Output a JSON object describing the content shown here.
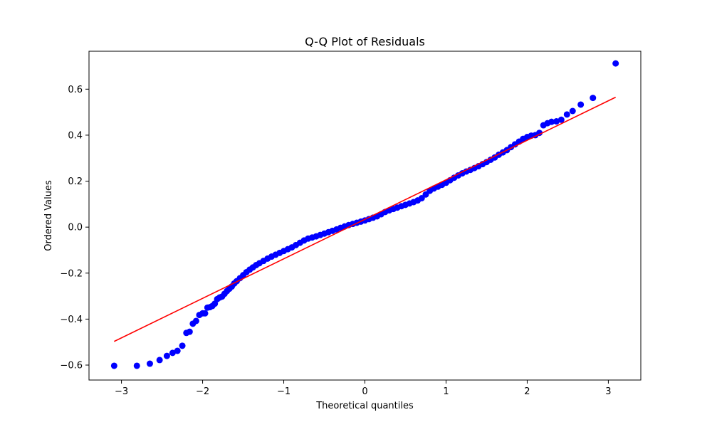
{
  "chart_data": {
    "type": "scatter",
    "title": "Q-Q Plot of Residuals",
    "xlabel": "Theoretical quantiles",
    "ylabel": "Ordered Values",
    "xlim": [
      -3.4,
      3.4
    ],
    "ylim": [
      -0.665,
      0.765
    ],
    "xticks": [
      -3,
      -2,
      -1,
      0,
      1,
      2,
      3
    ],
    "yticks": [
      -0.6,
      -0.4,
      -0.2,
      0.0,
      0.2,
      0.4,
      0.6
    ],
    "xtick_labels": [
      "−3",
      "−2",
      "−1",
      "0",
      "1",
      "2",
      "3"
    ],
    "ytick_labels": [
      "−0.6",
      "−0.4",
      "−0.2",
      "0.0",
      "0.2",
      "0.4",
      "0.6"
    ],
    "grid": false,
    "point_color": "#0000ff",
    "line_color": "#ff0000",
    "fit_line": {
      "x": [
        -3.09,
        3.09
      ],
      "y": [
        -0.497,
        0.565
      ]
    },
    "points": [
      [
        -3.09,
        -0.603
      ],
      [
        -2.81,
        -0.603
      ],
      [
        -2.65,
        -0.594
      ],
      [
        -2.53,
        -0.578
      ],
      [
        -2.44,
        -0.56
      ],
      [
        -2.37,
        -0.547
      ],
      [
        -2.31,
        -0.538
      ],
      [
        -2.25,
        -0.516
      ],
      [
        -2.2,
        -0.46
      ],
      [
        -2.16,
        -0.455
      ],
      [
        -2.12,
        -0.42
      ],
      [
        -2.08,
        -0.408
      ],
      [
        -2.04,
        -0.382
      ],
      [
        -2.0,
        -0.375
      ],
      [
        -1.97,
        -0.375
      ],
      [
        -1.94,
        -0.35
      ],
      [
        -1.91,
        -0.348
      ],
      [
        -1.88,
        -0.343
      ],
      [
        -1.85,
        -0.333
      ],
      [
        -1.82,
        -0.313
      ],
      [
        -1.79,
        -0.306
      ],
      [
        -1.76,
        -0.302
      ],
      [
        -1.73,
        -0.29
      ],
      [
        -1.7,
        -0.278
      ],
      [
        -1.67,
        -0.268
      ],
      [
        -1.64,
        -0.258
      ],
      [
        -1.61,
        -0.245
      ],
      [
        -1.58,
        -0.235
      ],
      [
        -1.54,
        -0.222
      ],
      [
        -1.5,
        -0.209
      ],
      [
        -1.46,
        -0.196
      ],
      [
        -1.42,
        -0.185
      ],
      [
        -1.38,
        -0.175
      ],
      [
        -1.34,
        -0.165
      ],
      [
        -1.3,
        -0.157
      ],
      [
        -1.25,
        -0.147
      ],
      [
        -1.2,
        -0.137
      ],
      [
        -1.15,
        -0.128
      ],
      [
        -1.1,
        -0.12
      ],
      [
        -1.05,
        -0.112
      ],
      [
        -1.0,
        -0.104
      ],
      [
        -0.95,
        -0.096
      ],
      [
        -0.9,
        -0.088
      ],
      [
        -0.85,
        -0.078
      ],
      [
        -0.8,
        -0.068
      ],
      [
        -0.75,
        -0.058
      ],
      [
        -0.7,
        -0.05
      ],
      [
        -0.65,
        -0.045
      ],
      [
        -0.6,
        -0.04
      ],
      [
        -0.55,
        -0.034
      ],
      [
        -0.5,
        -0.028
      ],
      [
        -0.45,
        -0.022
      ],
      [
        -0.4,
        -0.016
      ],
      [
        -0.35,
        -0.01
      ],
      [
        -0.3,
        -0.003
      ],
      [
        -0.25,
        0.003
      ],
      [
        -0.2,
        0.009
      ],
      [
        -0.15,
        0.014
      ],
      [
        -0.1,
        0.019
      ],
      [
        -0.05,
        0.024
      ],
      [
        0.0,
        0.029
      ],
      [
        0.05,
        0.035
      ],
      [
        0.1,
        0.041
      ],
      [
        0.15,
        0.047
      ],
      [
        0.2,
        0.056
      ],
      [
        0.25,
        0.066
      ],
      [
        0.3,
        0.073
      ],
      [
        0.35,
        0.079
      ],
      [
        0.4,
        0.085
      ],
      [
        0.45,
        0.091
      ],
      [
        0.5,
        0.097
      ],
      [
        0.55,
        0.103
      ],
      [
        0.6,
        0.109
      ],
      [
        0.65,
        0.116
      ],
      [
        0.7,
        0.126
      ],
      [
        0.75,
        0.142
      ],
      [
        0.8,
        0.158
      ],
      [
        0.85,
        0.168
      ],
      [
        0.9,
        0.176
      ],
      [
        0.95,
        0.184
      ],
      [
        1.0,
        0.193
      ],
      [
        1.05,
        0.204
      ],
      [
        1.1,
        0.215
      ],
      [
        1.15,
        0.225
      ],
      [
        1.2,
        0.234
      ],
      [
        1.25,
        0.242
      ],
      [
        1.3,
        0.249
      ],
      [
        1.35,
        0.257
      ],
      [
        1.4,
        0.265
      ],
      [
        1.45,
        0.274
      ],
      [
        1.5,
        0.283
      ],
      [
        1.55,
        0.293
      ],
      [
        1.6,
        0.303
      ],
      [
        1.65,
        0.315
      ],
      [
        1.7,
        0.325
      ],
      [
        1.75,
        0.335
      ],
      [
        1.8,
        0.348
      ],
      [
        1.85,
        0.36
      ],
      [
        1.9,
        0.372
      ],
      [
        1.95,
        0.384
      ],
      [
        2.0,
        0.392
      ],
      [
        2.05,
        0.398
      ],
      [
        2.1,
        0.4
      ],
      [
        2.15,
        0.41
      ],
      [
        2.2,
        0.443
      ],
      [
        2.25,
        0.452
      ],
      [
        2.3,
        0.458
      ],
      [
        2.36,
        0.46
      ],
      [
        2.42,
        0.467
      ],
      [
        2.49,
        0.49
      ],
      [
        2.56,
        0.505
      ],
      [
        2.66,
        0.533
      ],
      [
        2.81,
        0.562
      ],
      [
        3.09,
        0.712
      ]
    ]
  }
}
